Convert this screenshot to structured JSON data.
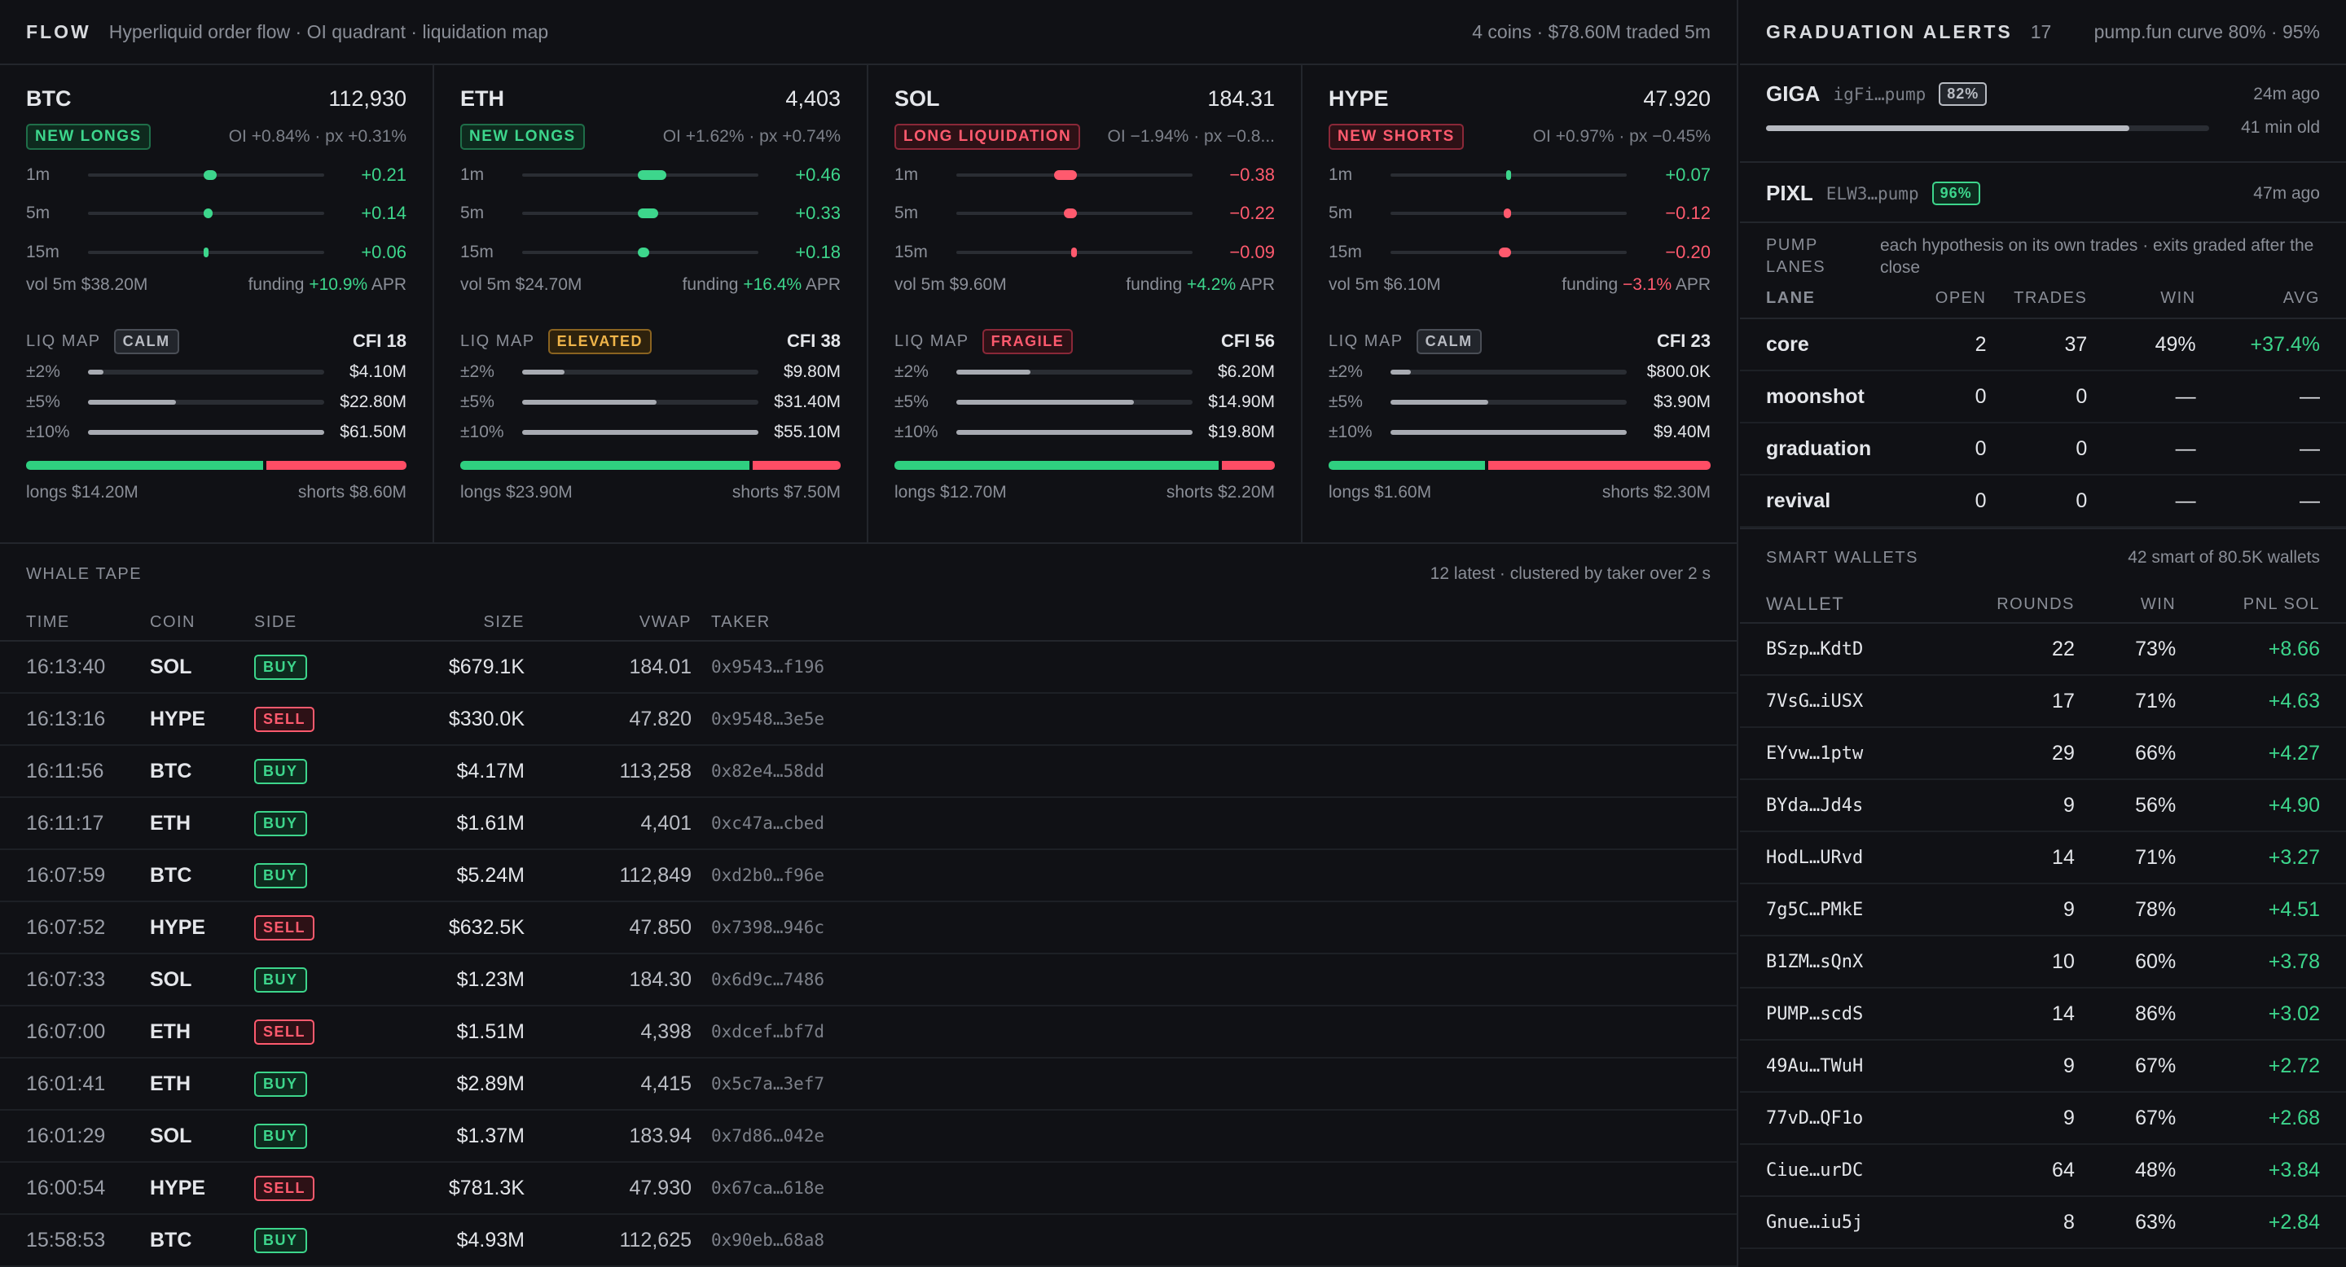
{
  "flow": {
    "title": "FLOW",
    "subtitle": "Hyperliquid order flow · OI quadrant · liquidation map",
    "summary": "4 coins · $78.60M traded 5m"
  },
  "coins": [
    {
      "name": "BTC",
      "price": "112,930",
      "signal": "NEW LONGS",
      "signal_tone": "green",
      "oi": "OI +0.84% · px +0.31%",
      "momentum": [
        {
          "label": "1m",
          "value": "+0.21",
          "tone": "green",
          "amount": 0.21
        },
        {
          "label": "5m",
          "value": "+0.14",
          "tone": "green",
          "amount": 0.14
        },
        {
          "label": "15m",
          "value": "+0.06",
          "tone": "green",
          "amount": 0.06
        }
      ],
      "vol_label": "vol 5m $38.20M",
      "funding_label": "funding",
      "funding": "+10.9%",
      "funding_tone": "green",
      "funding_unit": "APR",
      "liq_label": "LIQ MAP",
      "liq_state": "CALM",
      "liq_tone": "neutral",
      "cfi": "CFI 18",
      "liq": [
        {
          "label": "±2%",
          "value": "$4.10M",
          "amount": 4.1
        },
        {
          "label": "±5%",
          "value": "$22.80M",
          "amount": 22.8
        },
        {
          "label": "±10%",
          "value": "$61.50M",
          "amount": 61.5
        }
      ],
      "longs": "longs $14.20M",
      "shorts": "shorts $8.60M",
      "long_m": 14.2,
      "short_m": 8.6
    },
    {
      "name": "ETH",
      "price": "4,403",
      "signal": "NEW LONGS",
      "signal_tone": "green",
      "oi": "OI +1.62% · px +0.74%",
      "momentum": [
        {
          "label": "1m",
          "value": "+0.46",
          "tone": "green",
          "amount": 0.46
        },
        {
          "label": "5m",
          "value": "+0.33",
          "tone": "green",
          "amount": 0.33
        },
        {
          "label": "15m",
          "value": "+0.18",
          "tone": "green",
          "amount": 0.18
        }
      ],
      "vol_label": "vol 5m $24.70M",
      "funding_label": "funding",
      "funding": "+16.4%",
      "funding_tone": "green",
      "funding_unit": "APR",
      "liq_label": "LIQ MAP",
      "liq_state": "ELEVATED",
      "liq_tone": "yellow",
      "cfi": "CFI 38",
      "liq": [
        {
          "label": "±2%",
          "value": "$9.80M",
          "amount": 9.8
        },
        {
          "label": "±5%",
          "value": "$31.40M",
          "amount": 31.4
        },
        {
          "label": "±10%",
          "value": "$55.10M",
          "amount": 55.1
        }
      ],
      "longs": "longs $23.90M",
      "shorts": "shorts $7.50M",
      "long_m": 23.9,
      "short_m": 7.5
    },
    {
      "name": "SOL",
      "price": "184.31",
      "signal": "LONG LIQUIDATION",
      "signal_tone": "red",
      "oi": "OI −1.94% · px −0.8...",
      "momentum": [
        {
          "label": "1m",
          "value": "−0.38",
          "tone": "red",
          "amount": -0.38
        },
        {
          "label": "5m",
          "value": "−0.22",
          "tone": "red",
          "amount": -0.22
        },
        {
          "label": "15m",
          "value": "−0.09",
          "tone": "red",
          "amount": -0.09
        }
      ],
      "vol_label": "vol 5m $9.60M",
      "funding_label": "funding",
      "funding": "+4.2%",
      "funding_tone": "green",
      "funding_unit": "APR",
      "liq_label": "LIQ MAP",
      "liq_state": "FRAGILE",
      "liq_tone": "red",
      "cfi": "CFI 56",
      "liq": [
        {
          "label": "±2%",
          "value": "$6.20M",
          "amount": 6.2
        },
        {
          "label": "±5%",
          "value": "$14.90M",
          "amount": 14.9
        },
        {
          "label": "±10%",
          "value": "$19.80M",
          "amount": 19.8
        }
      ],
      "longs": "longs $12.70M",
      "shorts": "shorts $2.20M",
      "long_m": 12.7,
      "short_m": 2.2
    },
    {
      "name": "HYPE",
      "price": "47.920",
      "signal": "NEW SHORTS",
      "signal_tone": "red",
      "oi": "OI +0.97% · px −0.45%",
      "momentum": [
        {
          "label": "1m",
          "value": "+0.07",
          "tone": "green",
          "amount": 0.07
        },
        {
          "label": "5m",
          "value": "−0.12",
          "tone": "red",
          "amount": -0.12
        },
        {
          "label": "15m",
          "value": "−0.20",
          "tone": "red",
          "amount": -0.2
        }
      ],
      "vol_label": "vol 5m $6.10M",
      "funding_label": "funding",
      "funding": "−3.1%",
      "funding_tone": "red",
      "funding_unit": "APR",
      "liq_label": "LIQ MAP",
      "liq_state": "CALM",
      "liq_tone": "neutral",
      "cfi": "CFI 23",
      "liq": [
        {
          "label": "±2%",
          "value": "$800.0K",
          "amount": 0.8
        },
        {
          "label": "±5%",
          "value": "$3.90M",
          "amount": 3.9
        },
        {
          "label": "±10%",
          "value": "$9.40M",
          "amount": 9.4
        }
      ],
      "longs": "longs $1.60M",
      "shorts": "shorts $2.30M",
      "long_m": 1.6,
      "short_m": 2.3
    }
  ],
  "whale": {
    "title": "WHALE TAPE",
    "meta": "12 latest · clustered by taker over 2 s",
    "columns": {
      "time": "TIME",
      "coin": "COIN",
      "side": "SIDE",
      "size": "SIZE",
      "vwap": "VWAP",
      "taker": "TAKER"
    },
    "rows": [
      {
        "time": "16:13:40",
        "coin": "SOL",
        "side": "BUY",
        "size": "$679.1K",
        "vwap": "184.01",
        "taker": "0x9543…f196"
      },
      {
        "time": "16:13:16",
        "coin": "HYPE",
        "side": "SELL",
        "size": "$330.0K",
        "vwap": "47.820",
        "taker": "0x9548…3e5e"
      },
      {
        "time": "16:11:56",
        "coin": "BTC",
        "side": "BUY",
        "size": "$4.17M",
        "vwap": "113,258",
        "taker": "0x82e4…58dd"
      },
      {
        "time": "16:11:17",
        "coin": "ETH",
        "side": "BUY",
        "size": "$1.61M",
        "vwap": "4,401",
        "taker": "0xc47a…cbed"
      },
      {
        "time": "16:07:59",
        "coin": "BTC",
        "side": "BUY",
        "size": "$5.24M",
        "vwap": "112,849",
        "taker": "0xd2b0…f96e"
      },
      {
        "time": "16:07:52",
        "coin": "HYPE",
        "side": "SELL",
        "size": "$632.5K",
        "vwap": "47.850",
        "taker": "0x7398…946c"
      },
      {
        "time": "16:07:33",
        "coin": "SOL",
        "side": "BUY",
        "size": "$1.23M",
        "vwap": "184.30",
        "taker": "0x6d9c…7486"
      },
      {
        "time": "16:07:00",
        "coin": "ETH",
        "side": "SELL",
        "size": "$1.51M",
        "vwap": "4,398",
        "taker": "0xdcef…bf7d"
      },
      {
        "time": "16:01:41",
        "coin": "ETH",
        "side": "BUY",
        "size": "$2.89M",
        "vwap": "4,415",
        "taker": "0x5c7a…3ef7"
      },
      {
        "time": "16:01:29",
        "coin": "SOL",
        "side": "BUY",
        "size": "$1.37M",
        "vwap": "183.94",
        "taker": "0x7d86…042e"
      },
      {
        "time": "16:00:54",
        "coin": "HYPE",
        "side": "SELL",
        "size": "$781.3K",
        "vwap": "47.930",
        "taker": "0x67ca…618e"
      },
      {
        "time": "15:58:53",
        "coin": "BTC",
        "side": "BUY",
        "size": "$4.93M",
        "vwap": "112,625",
        "taker": "0x90eb…68a8"
      }
    ]
  },
  "grad": {
    "title": "GRADUATION ALERTS",
    "count": "17",
    "meta": "pump.fun curve 80% · 95%",
    "alerts": [
      {
        "name": "GIGA",
        "mint": "igFi…pump",
        "pct": "82%",
        "tone": "neutral",
        "ago": "24m ago",
        "age": "41 min old",
        "progress": 0.82
      },
      {
        "name": "PIXL",
        "mint": "ELW3…pump",
        "pct": "96%",
        "tone": "green",
        "ago": "47m ago"
      }
    ]
  },
  "lanes": {
    "label": "PUMP LANES",
    "desc": "each hypothesis on its own trades · exits graded after the close",
    "columns": {
      "lane": "LANE",
      "open": "OPEN",
      "trades": "TRADES",
      "win": "WIN",
      "avg": "AVG"
    },
    "rows": [
      {
        "lane": "core",
        "open": "2",
        "trades": "37",
        "win": "49%",
        "avg": "+37.4%"
      },
      {
        "lane": "moonshot",
        "open": "0",
        "trades": "0",
        "win": "—",
        "avg": "—"
      },
      {
        "lane": "graduation",
        "open": "0",
        "trades": "0",
        "win": "—",
        "avg": "—"
      },
      {
        "lane": "revival",
        "open": "0",
        "trades": "0",
        "win": "—",
        "avg": "—"
      }
    ]
  },
  "wallets": {
    "title": "SMART WALLETS",
    "meta": "42 smart of 80.5K wallets",
    "columns": {
      "wallet": "WALLET",
      "rounds": "ROUNDS",
      "win": "WIN",
      "pnl": "PNL SOL"
    },
    "rows": [
      {
        "wallet": "BSzp…KdtD",
        "rounds": "22",
        "win": "73%",
        "pnl": "+8.66"
      },
      {
        "wallet": "7VsG…iUSX",
        "rounds": "17",
        "win": "71%",
        "pnl": "+4.63"
      },
      {
        "wallet": "EYvw…1ptw",
        "rounds": "29",
        "win": "66%",
        "pnl": "+4.27"
      },
      {
        "wallet": "BYda…Jd4s",
        "rounds": "9",
        "win": "56%",
        "pnl": "+4.90"
      },
      {
        "wallet": "HodL…URvd",
        "rounds": "14",
        "win": "71%",
        "pnl": "+3.27"
      },
      {
        "wallet": "7g5C…PMkE",
        "rounds": "9",
        "win": "78%",
        "pnl": "+4.51"
      },
      {
        "wallet": "B1ZM…sQnX",
        "rounds": "10",
        "win": "60%",
        "pnl": "+3.78"
      },
      {
        "wallet": "PUMP…scdS",
        "rounds": "14",
        "win": "86%",
        "pnl": "+3.02"
      },
      {
        "wallet": "49Au…TWuH",
        "rounds": "9",
        "win": "67%",
        "pnl": "+2.72"
      },
      {
        "wallet": "77vD…QF1o",
        "rounds": "9",
        "win": "67%",
        "pnl": "+2.68"
      },
      {
        "wallet": "Ciue…urDC",
        "rounds": "64",
        "win": "48%",
        "pnl": "+3.84"
      },
      {
        "wallet": "Gnue…iu5j",
        "rounds": "8",
        "win": "63%",
        "pnl": "+2.84"
      }
    ]
  },
  "colors": {
    "green": "#3dd68c",
    "red": "#ff5a6e",
    "yellow": "#f0b54a",
    "background": "#101115"
  }
}
